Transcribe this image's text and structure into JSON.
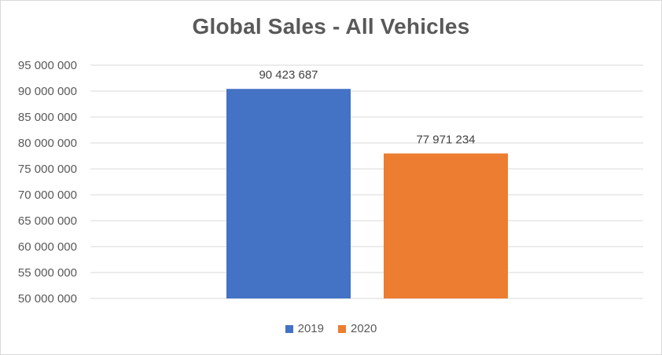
{
  "chart_data": {
    "type": "bar",
    "title": "Global Sales - All Vehicles",
    "xlabel": "",
    "ylabel": "",
    "ylim": [
      50000000,
      95000000
    ],
    "yticks": [
      50000000,
      55000000,
      60000000,
      65000000,
      70000000,
      75000000,
      80000000,
      85000000,
      90000000,
      95000000
    ],
    "ytick_labels": [
      "50 000 000",
      "55 000 000",
      "60 000 000",
      "65 000 000",
      "70 000 000",
      "75 000 000",
      "80 000 000",
      "85 000 000",
      "90 000 000",
      "95 000 000"
    ],
    "grid": true,
    "legend_position": "bottom",
    "series": [
      {
        "name": "2019",
        "values": [
          90423687
        ],
        "label": "90 423 687",
        "color": "#4472C4"
      },
      {
        "name": "2020",
        "values": [
          77971234
        ],
        "label": "77 971 234",
        "color": "#ED7D31"
      }
    ]
  }
}
